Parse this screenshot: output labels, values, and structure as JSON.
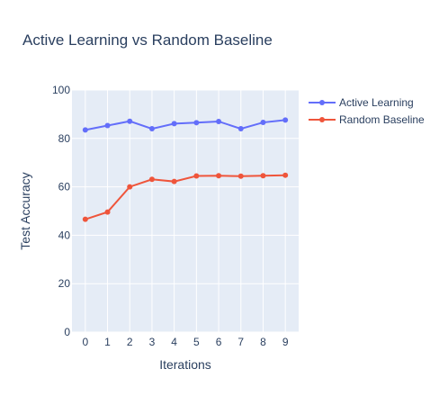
{
  "chart_data": {
    "type": "line",
    "title": "Active Learning vs Random Baseline",
    "xlabel": "Iterations",
    "ylabel": "Test Accuracy",
    "x": [
      0,
      1,
      2,
      3,
      4,
      5,
      6,
      7,
      8,
      9
    ],
    "xlim": [
      -0.6,
      9.6
    ],
    "ylim": [
      0,
      100
    ],
    "yticks": [
      0,
      20,
      40,
      60,
      80,
      100
    ],
    "grid": true,
    "legend_position": "top-right",
    "series": [
      {
        "name": "Active Learning",
        "color": "#636efa",
        "values": [
          83.5,
          85.3,
          87.1,
          84.0,
          86.1,
          86.5,
          87.0,
          84.0,
          86.6,
          87.6
        ]
      },
      {
        "name": "Random Baseline",
        "color": "#ef553b",
        "values": [
          46.6,
          49.6,
          60.0,
          63.1,
          62.2,
          64.5,
          64.6,
          64.4,
          64.6,
          64.8
        ]
      }
    ]
  }
}
